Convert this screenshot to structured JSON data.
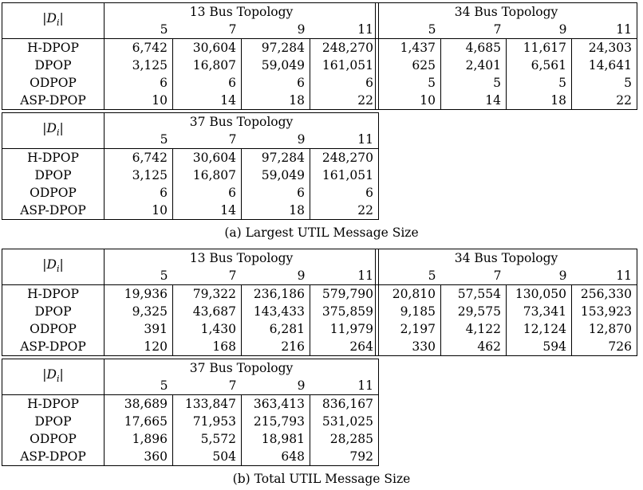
{
  "row_header": "|D_i|",
  "domain_sizes": [
    "5",
    "7",
    "9",
    "11"
  ],
  "algorithms": [
    "H-DPOP",
    "DPOP",
    "ODPOP",
    "ASP-DPOP"
  ],
  "panel_a": {
    "caption": "(a) Largest UTIL Message Size",
    "bus13": {
      "title": "13 Bus Topology",
      "rows": [
        [
          "6,742",
          "30,604",
          "97,284",
          "248,270"
        ],
        [
          "3,125",
          "16,807",
          "59,049",
          "161,051"
        ],
        [
          "6",
          "6",
          "6",
          "6"
        ],
        [
          "10",
          "14",
          "18",
          "22"
        ]
      ]
    },
    "bus34": {
      "title": "34 Bus Topology",
      "rows": [
        [
          "1,437",
          "4,685",
          "11,617",
          "24,303"
        ],
        [
          "625",
          "2,401",
          "6,561",
          "14,641"
        ],
        [
          "5",
          "5",
          "5",
          "5"
        ],
        [
          "10",
          "14",
          "18",
          "22"
        ]
      ]
    },
    "bus37": {
      "title": "37 Bus Topology",
      "rows": [
        [
          "6,742",
          "30,604",
          "97,284",
          "248,270"
        ],
        [
          "3,125",
          "16,807",
          "59,049",
          "161,051"
        ],
        [
          "6",
          "6",
          "6",
          "6"
        ],
        [
          "10",
          "14",
          "18",
          "22"
        ]
      ]
    }
  },
  "panel_b": {
    "caption": "(b) Total UTIL Message Size",
    "bus13": {
      "title": "13 Bus Topology",
      "rows": [
        [
          "19,936",
          "79,322",
          "236,186",
          "579,790"
        ],
        [
          "9,325",
          "43,687",
          "143,433",
          "375,859"
        ],
        [
          "391",
          "1,430",
          "6,281",
          "11,979"
        ],
        [
          "120",
          "168",
          "216",
          "264"
        ]
      ]
    },
    "bus34": {
      "title": "34 Bus Topology",
      "rows": [
        [
          "20,810",
          "57,554",
          "130,050",
          "256,330"
        ],
        [
          "9,185",
          "29,575",
          "73,341",
          "153,923"
        ],
        [
          "2,197",
          "4,122",
          "12,124",
          "12,870"
        ],
        [
          "330",
          "462",
          "594",
          "726"
        ]
      ]
    },
    "bus37": {
      "title": "37 Bus Topology",
      "rows": [
        [
          "38,689",
          "133,847",
          "363,413",
          "836,167"
        ],
        [
          "17,665",
          "71,953",
          "215,793",
          "531,025"
        ],
        [
          "1,896",
          "5,572",
          "18,981",
          "28,285"
        ],
        [
          "360",
          "504",
          "648",
          "792"
        ]
      ]
    }
  }
}
